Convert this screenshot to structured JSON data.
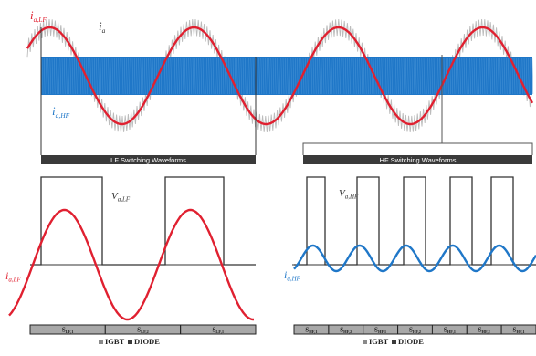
{
  "colors": {
    "lf_current": "#e02030",
    "hf_current": "#1f77c8",
    "ripple": "#b9b9b9",
    "bar_bg": "#3a3a3a",
    "segment_bg": "#a8a8a8"
  },
  "top": {
    "label_lf": "i",
    "label_lf_sub": "a,LF",
    "label_total": "i",
    "label_total_sub": "a",
    "label_hf": "i",
    "label_hf_sub": "a,HF"
  },
  "bars": {
    "lf_title": "LF Switching Waveforms",
    "hf_title": "HF Switching Waveforms"
  },
  "left_panel": {
    "v_label": "V",
    "v_sub": "a,LF",
    "i_label": "i",
    "i_sub": "a,LF",
    "segments": [
      "S",
      "S",
      "S"
    ],
    "segment_subs": [
      "LF,1",
      "LF,2",
      "LF,1"
    ],
    "legend_igbt": "IGBT",
    "legend_diode": "DIODE"
  },
  "right_panel": {
    "v_label": "V",
    "v_sub": "a,HF",
    "i_label": "i",
    "i_sub": "a,HF",
    "segments": [
      "S",
      "S",
      "S",
      "S",
      "S",
      "S",
      "S"
    ],
    "segment_subs": [
      "HF,1",
      "HF,2",
      "HF,1",
      "HF,2",
      "HF,1",
      "HF,2",
      "HF,1"
    ],
    "legend_igbt": "IGBT",
    "legend_diode": "DIODE"
  }
}
